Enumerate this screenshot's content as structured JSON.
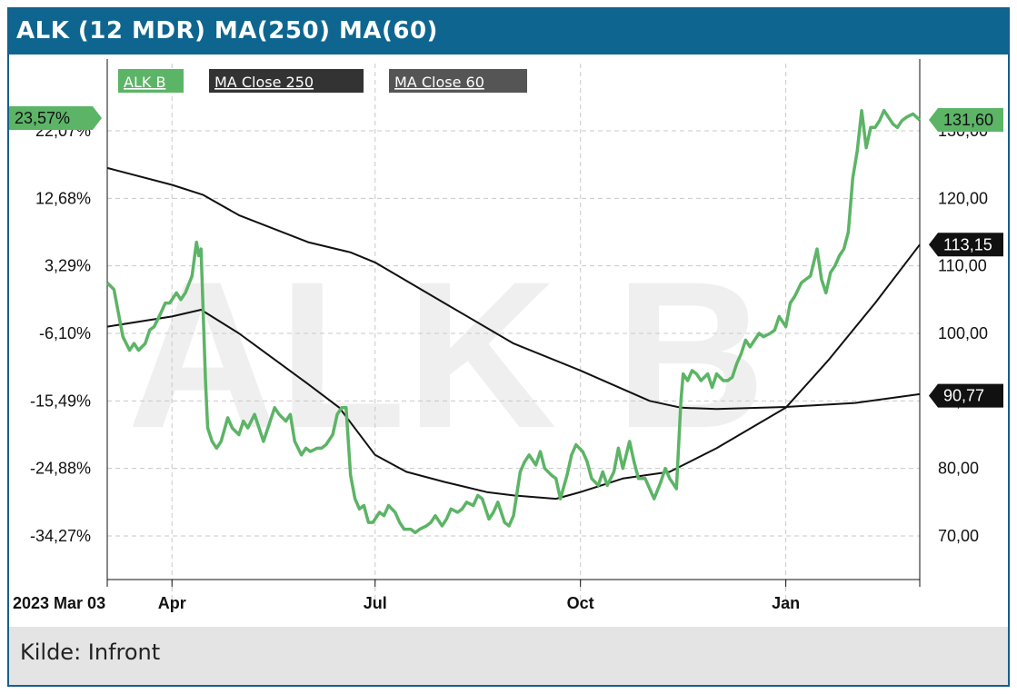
{
  "header": {
    "title": "ALK (12 MDR) MA(250) MA(60)"
  },
  "footer": {
    "source": "Kilde: Infront"
  },
  "watermark": "ALK B",
  "colors": {
    "header": "#0e6690",
    "price": "#5cb466",
    "ma": "#111111",
    "grid": "#c8c8c8"
  },
  "chart_data": {
    "type": "line",
    "x_start_label": "2023 Mar 03",
    "x_ticks": [
      {
        "date": "2023-03-03",
        "label": "2023 Mar 03"
      },
      {
        "date": "2023-04-01",
        "label": "Apr"
      },
      {
        "date": "2023-07-01",
        "label": "Jul"
      },
      {
        "date": "2023-10-01",
        "label": "Oct"
      },
      {
        "date": "2024-01-01",
        "label": "Jan"
      }
    ],
    "y_right_ticks": [
      {
        "value": 130,
        "label": "130,00"
      },
      {
        "value": 120,
        "label": "120,00"
      },
      {
        "value": 110,
        "label": "110,00"
      },
      {
        "value": 100,
        "label": "100,00"
      },
      {
        "value": 90,
        "label": "90,00"
      },
      {
        "value": 80,
        "label": "80,00"
      },
      {
        "value": 70,
        "label": "70,00"
      }
    ],
    "y_left_ticks": [
      {
        "value": 22.07,
        "label": "22,07%"
      },
      {
        "value": 12.68,
        "label": "12,68%"
      },
      {
        "value": 3.29,
        "label": "3,29%"
      },
      {
        "value": -6.1,
        "label": "-6,10%"
      },
      {
        "value": -15.49,
        "label": "-15,49%"
      },
      {
        "value": -24.88,
        "label": "-24,88%"
      },
      {
        "value": -34.27,
        "label": "-34,27%"
      }
    ],
    "y_right_range": [
      65,
      137
    ],
    "grid": true,
    "legend_position": "top-left",
    "series": [
      {
        "name": "ALK_B",
        "color": "#5cb466",
        "last_label": "131,60",
        "left_label": "23,57%",
        "points": [
          [
            "2023-03-03",
            107.5
          ],
          [
            "2023-03-06",
            106.5
          ],
          [
            "2023-03-08",
            103
          ],
          [
            "2023-03-10",
            99.5
          ],
          [
            "2023-03-13",
            97.5
          ],
          [
            "2023-03-15",
            98.5
          ],
          [
            "2023-03-17",
            97.5
          ],
          [
            "2023-03-20",
            98.5
          ],
          [
            "2023-03-22",
            100.5
          ],
          [
            "2023-03-24",
            101
          ],
          [
            "2023-03-27",
            103
          ],
          [
            "2023-03-29",
            104.5
          ],
          [
            "2023-03-31",
            104.5
          ],
          [
            "2023-04-03",
            106
          ],
          [
            "2023-04-05",
            105
          ],
          [
            "2023-04-07",
            106
          ],
          [
            "2023-04-10",
            108.5
          ],
          [
            "2023-04-12",
            113.5
          ],
          [
            "2023-04-13",
            111.5
          ],
          [
            "2023-04-14",
            112.5
          ],
          [
            "2023-04-16",
            93
          ],
          [
            "2023-04-17",
            86
          ],
          [
            "2023-04-19",
            84
          ],
          [
            "2023-04-21",
            83
          ],
          [
            "2023-04-23",
            84
          ],
          [
            "2023-04-26",
            87.5
          ],
          [
            "2023-04-28",
            86
          ],
          [
            "2023-05-01",
            85
          ],
          [
            "2023-05-03",
            87
          ],
          [
            "2023-05-05",
            86
          ],
          [
            "2023-05-08",
            88
          ],
          [
            "2023-05-10",
            86
          ],
          [
            "2023-05-12",
            84
          ],
          [
            "2023-05-15",
            87
          ],
          [
            "2023-05-17",
            89
          ],
          [
            "2023-05-19",
            88
          ],
          [
            "2023-05-22",
            87
          ],
          [
            "2023-05-24",
            88
          ],
          [
            "2023-05-26",
            84
          ],
          [
            "2023-05-29",
            82
          ],
          [
            "2023-05-31",
            83
          ],
          [
            "2023-06-02",
            82.5
          ],
          [
            "2023-06-05",
            83
          ],
          [
            "2023-06-07",
            83
          ],
          [
            "2023-06-09",
            83.5
          ],
          [
            "2023-06-12",
            85
          ],
          [
            "2023-06-14",
            88
          ],
          [
            "2023-06-16",
            89
          ],
          [
            "2023-06-18",
            89
          ],
          [
            "2023-06-20",
            79
          ],
          [
            "2023-06-22",
            75.5
          ],
          [
            "2023-06-24",
            74
          ],
          [
            "2023-06-26",
            74.5
          ],
          [
            "2023-06-28",
            72
          ],
          [
            "2023-06-30",
            72
          ],
          [
            "2023-07-03",
            73.5
          ],
          [
            "2023-07-05",
            73
          ],
          [
            "2023-07-07",
            74.5
          ],
          [
            "2023-07-10",
            73.5
          ],
          [
            "2023-07-12",
            72
          ],
          [
            "2023-07-14",
            71
          ],
          [
            "2023-07-17",
            71
          ],
          [
            "2023-07-19",
            70.5
          ],
          [
            "2023-07-21",
            71
          ],
          [
            "2023-07-24",
            71.5
          ],
          [
            "2023-07-26",
            72
          ],
          [
            "2023-07-28",
            73
          ],
          [
            "2023-07-31",
            71.5
          ],
          [
            "2023-08-02",
            72.5
          ],
          [
            "2023-08-04",
            74
          ],
          [
            "2023-08-07",
            73.5
          ],
          [
            "2023-08-09",
            74
          ],
          [
            "2023-08-11",
            75
          ],
          [
            "2023-08-14",
            74.5
          ],
          [
            "2023-08-16",
            76
          ],
          [
            "2023-08-18",
            75.5
          ],
          [
            "2023-08-21",
            72.5
          ],
          [
            "2023-08-23",
            73.5
          ],
          [
            "2023-08-25",
            75
          ],
          [
            "2023-08-28",
            72
          ],
          [
            "2023-08-30",
            71.5
          ],
          [
            "2023-09-01",
            73
          ],
          [
            "2023-09-04",
            79.5
          ],
          [
            "2023-09-06",
            81
          ],
          [
            "2023-09-08",
            82
          ],
          [
            "2023-09-11",
            80.5
          ],
          [
            "2023-09-13",
            82.5
          ],
          [
            "2023-09-15",
            80
          ],
          [
            "2023-09-18",
            79
          ],
          [
            "2023-09-20",
            78.5
          ],
          [
            "2023-09-22",
            75.5
          ],
          [
            "2023-09-25",
            79
          ],
          [
            "2023-09-27",
            82
          ],
          [
            "2023-09-29",
            83.5
          ],
          [
            "2023-10-02",
            82.5
          ],
          [
            "2023-10-04",
            81
          ],
          [
            "2023-10-06",
            78.5
          ],
          [
            "2023-10-09",
            77.5
          ],
          [
            "2023-10-11",
            79.5
          ],
          [
            "2023-10-13",
            77.5
          ],
          [
            "2023-10-16",
            79.5
          ],
          [
            "2023-10-18",
            83
          ],
          [
            "2023-10-20",
            80
          ],
          [
            "2023-10-23",
            84
          ],
          [
            "2023-10-25",
            81
          ],
          [
            "2023-10-27",
            78.5
          ],
          [
            "2023-10-30",
            78.5
          ],
          [
            "2023-11-01",
            77
          ],
          [
            "2023-11-03",
            75.5
          ],
          [
            "2023-11-06",
            78
          ],
          [
            "2023-11-08",
            80
          ],
          [
            "2023-11-10",
            78.5
          ],
          [
            "2023-11-13",
            77
          ],
          [
            "2023-11-15",
            90
          ],
          [
            "2023-11-16",
            94
          ],
          [
            "2023-11-18",
            93
          ],
          [
            "2023-11-20",
            94.5
          ],
          [
            "2023-11-22",
            94
          ],
          [
            "2023-11-24",
            93
          ],
          [
            "2023-11-27",
            94
          ],
          [
            "2023-11-29",
            92
          ],
          [
            "2023-12-01",
            94
          ],
          [
            "2023-12-04",
            93
          ],
          [
            "2023-12-06",
            93
          ],
          [
            "2023-12-08",
            93.5
          ],
          [
            "2023-12-10",
            95.5
          ],
          [
            "2023-12-12",
            97
          ],
          [
            "2023-12-14",
            99
          ],
          [
            "2023-12-16",
            98
          ],
          [
            "2023-12-18",
            99
          ],
          [
            "2023-12-20",
            100
          ],
          [
            "2023-12-22",
            99.5
          ],
          [
            "2023-12-25",
            100
          ],
          [
            "2023-12-27",
            100.5
          ],
          [
            "2023-12-29",
            102.5
          ],
          [
            "2024-01-01",
            101
          ],
          [
            "2024-01-03",
            104.5
          ],
          [
            "2024-01-05",
            105.5
          ],
          [
            "2024-01-08",
            107.5
          ],
          [
            "2024-01-10",
            108
          ],
          [
            "2024-01-12",
            108.5
          ],
          [
            "2024-01-15",
            112.5
          ],
          [
            "2024-01-17",
            108
          ],
          [
            "2024-01-19",
            106
          ],
          [
            "2024-01-21",
            109
          ],
          [
            "2024-01-23",
            110
          ],
          [
            "2024-01-25",
            111.5
          ],
          [
            "2024-01-27",
            112.5
          ],
          [
            "2024-01-29",
            115
          ],
          [
            "2024-01-31",
            123
          ],
          [
            "2024-02-02",
            127
          ],
          [
            "2024-02-04",
            133
          ],
          [
            "2024-02-06",
            127.5
          ],
          [
            "2024-02-08",
            130.5
          ],
          [
            "2024-02-10",
            130.5
          ],
          [
            "2024-02-12",
            131.5
          ],
          [
            "2024-02-14",
            133
          ],
          [
            "2024-02-16",
            132
          ],
          [
            "2024-02-18",
            131
          ],
          [
            "2024-02-20",
            130.5
          ],
          [
            "2024-02-22",
            131.5
          ],
          [
            "2024-02-24",
            132
          ],
          [
            "2024-02-27",
            132.5
          ],
          [
            "2024-03-01",
            131.6
          ]
        ]
      },
      {
        "name": "MA_Close_250",
        "color": "#111111",
        "last_label": "90,77",
        "points": [
          [
            "2023-03-03",
            124.5
          ],
          [
            "2023-04-01",
            122
          ],
          [
            "2023-04-15",
            120.5
          ],
          [
            "2023-05-01",
            117.5
          ],
          [
            "2023-06-01",
            113.5
          ],
          [
            "2023-06-20",
            112
          ],
          [
            "2023-07-01",
            110.5
          ],
          [
            "2023-08-01",
            104.5
          ],
          [
            "2023-09-01",
            98.5
          ],
          [
            "2023-10-01",
            94.5
          ],
          [
            "2023-11-01",
            90
          ],
          [
            "2023-11-15",
            89
          ],
          [
            "2023-12-01",
            88.8
          ],
          [
            "2024-01-01",
            89.1
          ],
          [
            "2024-02-01",
            89.7
          ],
          [
            "2024-03-01",
            91
          ]
        ]
      },
      {
        "name": "MA_Close_60",
        "color": "#111111",
        "last_label": "113,15",
        "points": [
          [
            "2023-03-03",
            101
          ],
          [
            "2023-04-01",
            102.5
          ],
          [
            "2023-04-14",
            103.5
          ],
          [
            "2023-05-01",
            100
          ],
          [
            "2023-06-01",
            92.5
          ],
          [
            "2023-06-15",
            89
          ],
          [
            "2023-07-01",
            82
          ],
          [
            "2023-07-15",
            79.5
          ],
          [
            "2023-08-01",
            78
          ],
          [
            "2023-08-20",
            76.5
          ],
          [
            "2023-09-01",
            76
          ],
          [
            "2023-09-20",
            75.5
          ],
          [
            "2023-10-01",
            76.5
          ],
          [
            "2023-10-20",
            78.5
          ],
          [
            "2023-11-10",
            79.5
          ],
          [
            "2023-12-01",
            83
          ],
          [
            "2024-01-01",
            89
          ],
          [
            "2024-01-20",
            96
          ],
          [
            "2024-02-10",
            104.5
          ],
          [
            "2024-03-01",
            113.15
          ]
        ]
      }
    ]
  }
}
